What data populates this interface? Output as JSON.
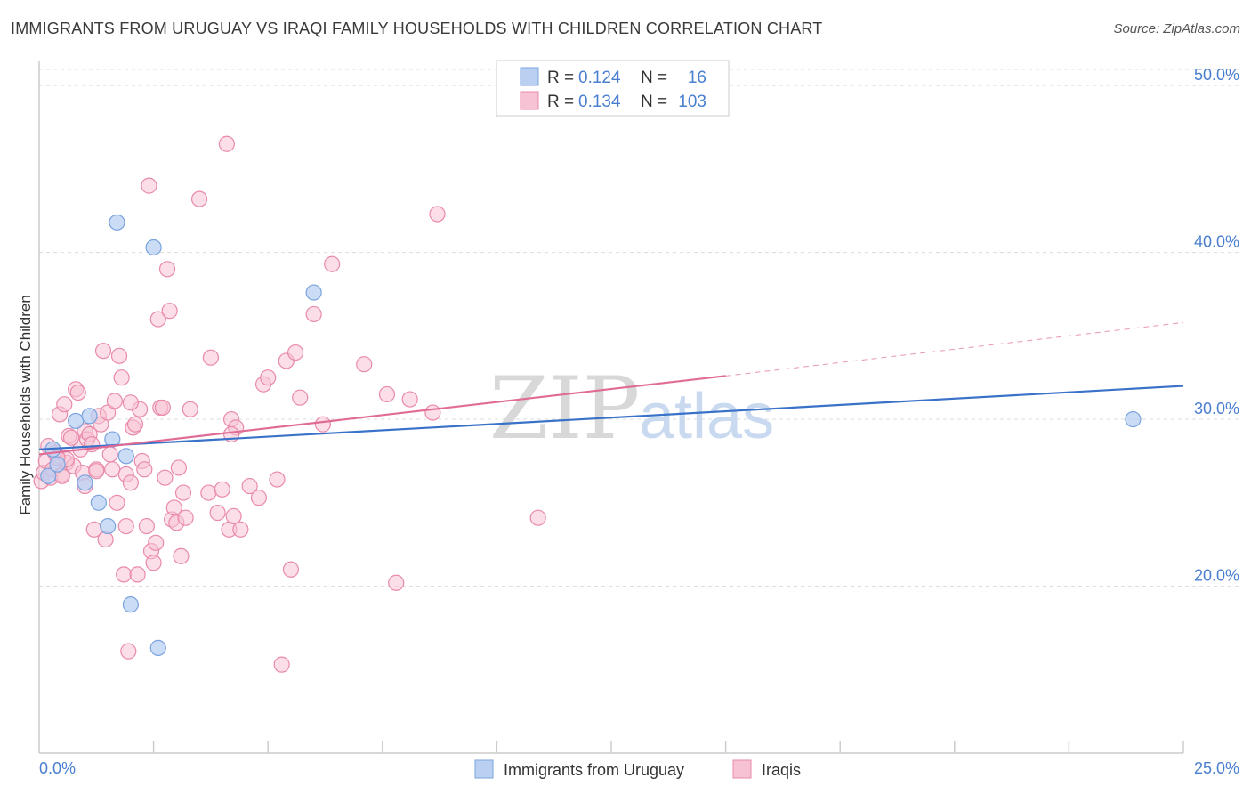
{
  "header": {
    "title": "IMMIGRANTS FROM URUGUAY VS IRAQI FAMILY HOUSEHOLDS WITH CHILDREN CORRELATION CHART",
    "source": "Source: ZipAtlas.com"
  },
  "watermark": {
    "zip": "ZIP",
    "atlas": "atlas"
  },
  "legend": {
    "series": [
      {
        "r_label": "R =",
        "r_value": "0.124",
        "n_label": "N =",
        "n_value": "16"
      },
      {
        "r_label": "R =",
        "r_value": "0.134",
        "n_label": "N =",
        "n_value": "103"
      }
    ]
  },
  "colors": {
    "blue_fill": "#b9d0f3",
    "blue_stroke": "#7aa3de",
    "blue_line": "#3a72c8",
    "pink_fill": "#f7c2d4",
    "pink_stroke": "#e98aab",
    "pink_line": "#e06b95",
    "grid": "#dddddd",
    "tick_text": "#4a7fd0"
  },
  "chart_data": {
    "type": "scatter",
    "title": "IMMIGRANTS FROM URUGUAY VS IRAQI FAMILY HOUSEHOLDS WITH CHILDREN CORRELATION CHART",
    "xlabel": "",
    "ylabel": "Family Households with Children",
    "xlim": [
      0,
      25
    ],
    "ylim": [
      10,
      51.5
    ],
    "x_tick_labels": [
      "0.0%",
      "25.0%"
    ],
    "y_ticks": [
      20,
      30,
      40,
      50
    ],
    "y_tick_labels": [
      "20.0%",
      "30.0%",
      "40.0%",
      "50.0%"
    ],
    "grid": true,
    "legend_position": "bottom",
    "series": [
      {
        "name": "Immigrants from Uruguay",
        "r": 0.124,
        "n": 16,
        "trend": {
          "x0": 0,
          "y0": 28.2,
          "x1": 25,
          "y1": 32.0,
          "dashed_to": 25
        },
        "points": [
          [
            0.2,
            26.6
          ],
          [
            0.3,
            28.2
          ],
          [
            0.4,
            27.3
          ],
          [
            0.8,
            29.9
          ],
          [
            1.0,
            26.2
          ],
          [
            1.1,
            30.2
          ],
          [
            1.3,
            25.0
          ],
          [
            1.5,
            23.6
          ],
          [
            1.6,
            28.8
          ],
          [
            1.7,
            41.8
          ],
          [
            1.9,
            27.8
          ],
          [
            2.0,
            18.9
          ],
          [
            2.5,
            40.3
          ],
          [
            2.6,
            16.3
          ],
          [
            6.0,
            37.6
          ],
          [
            23.9,
            30.0
          ]
        ]
      },
      {
        "name": "Iraqis",
        "r": 0.134,
        "n": 103,
        "trend": {
          "x0": 0,
          "y0": 27.9,
          "x1": 15,
          "y1": 32.6,
          "dashed_to": 25,
          "y_dashed_end": 35.8
        },
        "points": [
          [
            0.05,
            26.3
          ],
          [
            0.1,
            26.8
          ],
          [
            0.15,
            27.5
          ],
          [
            0.2,
            28.4
          ],
          [
            0.25,
            26.5
          ],
          [
            0.3,
            27.0
          ],
          [
            0.35,
            28.0
          ],
          [
            0.45,
            30.3
          ],
          [
            0.5,
            26.7
          ],
          [
            0.55,
            30.9
          ],
          [
            0.6,
            27.4
          ],
          [
            0.65,
            29.0
          ],
          [
            0.7,
            28.9
          ],
          [
            0.75,
            27.2
          ],
          [
            0.8,
            31.8
          ],
          [
            0.85,
            31.6
          ],
          [
            0.9,
            28.2
          ],
          [
            0.95,
            26.8
          ],
          [
            1.0,
            29.3
          ],
          [
            1.05,
            28.8
          ],
          [
            1.1,
            29.1
          ],
          [
            1.15,
            28.5
          ],
          [
            1.2,
            23.4
          ],
          [
            1.25,
            27.0
          ],
          [
            1.3,
            30.2
          ],
          [
            1.35,
            29.7
          ],
          [
            1.4,
            34.1
          ],
          [
            1.45,
            22.8
          ],
          [
            1.5,
            30.4
          ],
          [
            1.55,
            27.9
          ],
          [
            1.6,
            27.0
          ],
          [
            1.65,
            31.1
          ],
          [
            1.7,
            25.0
          ],
          [
            1.75,
            33.8
          ],
          [
            1.8,
            32.5
          ],
          [
            1.85,
            20.7
          ],
          [
            1.9,
            26.7
          ],
          [
            1.95,
            16.1
          ],
          [
            2.0,
            26.2
          ],
          [
            2.05,
            29.5
          ],
          [
            2.1,
            29.7
          ],
          [
            2.15,
            20.7
          ],
          [
            2.2,
            30.6
          ],
          [
            2.25,
            27.5
          ],
          [
            2.3,
            27.0
          ],
          [
            2.35,
            23.6
          ],
          [
            2.4,
            44.0
          ],
          [
            2.45,
            22.1
          ],
          [
            2.5,
            21.4
          ],
          [
            2.55,
            22.6
          ],
          [
            2.6,
            36.0
          ],
          [
            2.65,
            30.7
          ],
          [
            2.7,
            30.7
          ],
          [
            2.75,
            26.5
          ],
          [
            2.8,
            39.0
          ],
          [
            2.85,
            36.5
          ],
          [
            2.9,
            24.0
          ],
          [
            2.95,
            24.7
          ],
          [
            3.0,
            23.8
          ],
          [
            3.05,
            27.1
          ],
          [
            3.1,
            21.8
          ],
          [
            3.15,
            25.6
          ],
          [
            3.2,
            24.1
          ],
          [
            3.3,
            30.6
          ],
          [
            3.5,
            43.2
          ],
          [
            3.7,
            25.6
          ],
          [
            3.75,
            33.7
          ],
          [
            3.9,
            24.4
          ],
          [
            4.0,
            25.8
          ],
          [
            4.1,
            46.5
          ],
          [
            4.15,
            23.4
          ],
          [
            4.2,
            30.0
          ],
          [
            4.25,
            24.2
          ],
          [
            4.3,
            29.5
          ],
          [
            4.4,
            23.4
          ],
          [
            4.6,
            26.0
          ],
          [
            4.8,
            25.3
          ],
          [
            4.9,
            32.1
          ],
          [
            5.0,
            32.5
          ],
          [
            5.2,
            26.4
          ],
          [
            5.3,
            15.3
          ],
          [
            5.4,
            33.5
          ],
          [
            5.5,
            21.0
          ],
          [
            5.6,
            34.0
          ],
          [
            5.7,
            31.3
          ],
          [
            6.0,
            36.3
          ],
          [
            6.2,
            29.7
          ],
          [
            6.4,
            39.3
          ],
          [
            7.1,
            33.3
          ],
          [
            7.6,
            31.5
          ],
          [
            7.8,
            20.2
          ],
          [
            8.1,
            31.2
          ],
          [
            8.6,
            30.4
          ],
          [
            8.7,
            42.3
          ],
          [
            10.9,
            24.1
          ],
          [
            1.0,
            26.0
          ],
          [
            0.6,
            27.6
          ],
          [
            1.25,
            26.9
          ],
          [
            2.0,
            31.0
          ],
          [
            0.4,
            27.7
          ],
          [
            0.5,
            26.6
          ],
          [
            1.9,
            23.6
          ],
          [
            4.2,
            29.1
          ]
        ]
      }
    ]
  },
  "bottom_legend": {
    "items": [
      {
        "label": "Immigrants from Uruguay"
      },
      {
        "label": "Iraqis"
      }
    ]
  }
}
